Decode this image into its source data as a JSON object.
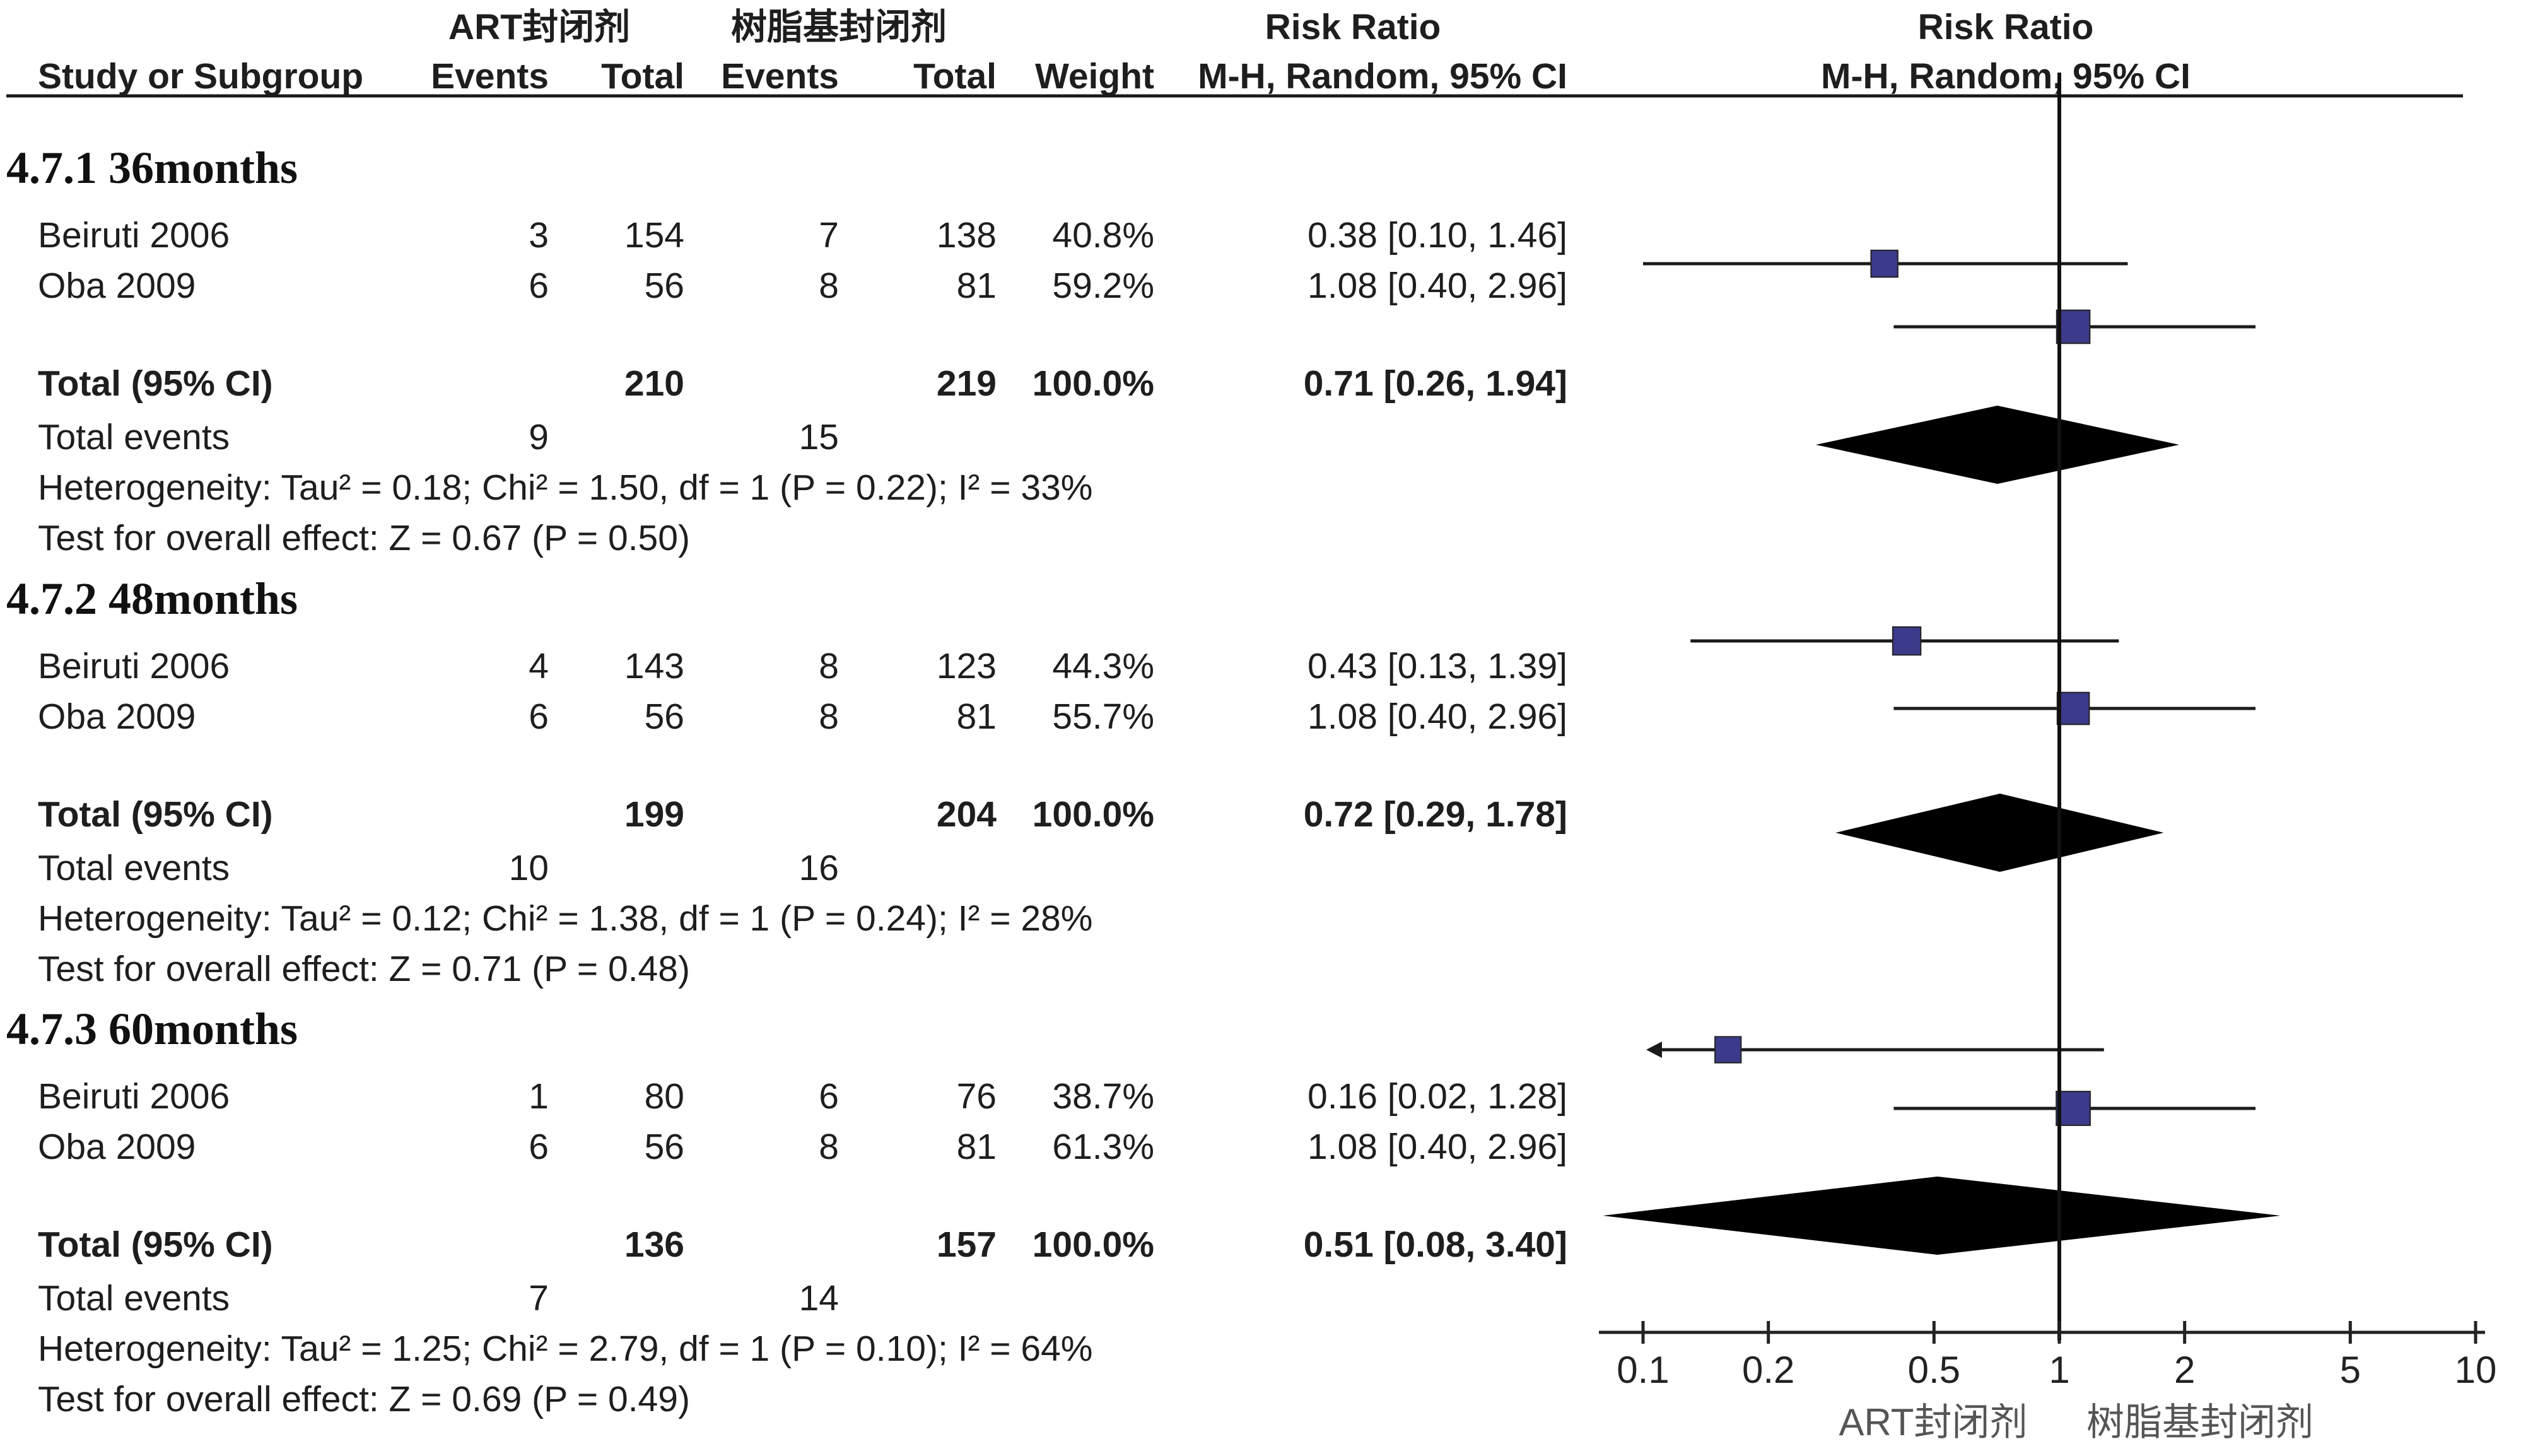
{
  "columns": {
    "study": "Study or Subgroup",
    "exp_group": "ART封闭剂",
    "ctrl_group": "树脂基封闭剂",
    "events": "Events",
    "total": "Total",
    "weight": "Weight",
    "rr_title": "Risk Ratio",
    "rr_method": "M-H, Random, 95% CI",
    "plot_title": "Risk Ratio",
    "plot_method": "M-H, Random, 95% CI"
  },
  "subgroups": [
    {
      "title": "4.7.1 36months",
      "studies": [
        {
          "name": "Beiruti 2006",
          "exp_events": "3",
          "exp_total": "154",
          "ctrl_events": "7",
          "ctrl_total": "138",
          "weight": "40.8%",
          "ci_text": "0.38 [0.10, 1.46]",
          "rr": 0.38,
          "lo": 0.1,
          "hi": 1.46,
          "w": 40.8
        },
        {
          "name": "Oba 2009",
          "exp_events": "6",
          "exp_total": "56",
          "ctrl_events": "8",
          "ctrl_total": "81",
          "weight": "59.2%",
          "ci_text": "1.08 [0.40, 2.96]",
          "rr": 1.08,
          "lo": 0.4,
          "hi": 2.96,
          "w": 59.2
        }
      ],
      "total": {
        "label": "Total (95% CI)",
        "exp_total": "210",
        "ctrl_total": "219",
        "weight": "100.0%",
        "ci_text": "0.71 [0.26, 1.94]",
        "rr": 0.71,
        "lo": 0.26,
        "hi": 1.94
      },
      "events": {
        "label": "Total events",
        "exp": "9",
        "ctrl": "15"
      },
      "heterogeneity": "Heterogeneity: Tau² = 0.18; Chi² = 1.50, df = 1 (P = 0.22); I² = 33%",
      "overall": "Test for overall effect: Z = 0.67 (P = 0.50)"
    },
    {
      "title": "4.7.2 48months",
      "studies": [
        {
          "name": "Beiruti 2006",
          "exp_events": "4",
          "exp_total": "143",
          "ctrl_events": "8",
          "ctrl_total": "123",
          "weight": "44.3%",
          "ci_text": "0.43 [0.13, 1.39]",
          "rr": 0.43,
          "lo": 0.13,
          "hi": 1.39,
          "w": 44.3
        },
        {
          "name": "Oba 2009",
          "exp_events": "6",
          "exp_total": "56",
          "ctrl_events": "8",
          "ctrl_total": "81",
          "weight": "55.7%",
          "ci_text": "1.08 [0.40, 2.96]",
          "rr": 1.08,
          "lo": 0.4,
          "hi": 2.96,
          "w": 55.7
        }
      ],
      "total": {
        "label": "Total (95% CI)",
        "exp_total": "199",
        "ctrl_total": "204",
        "weight": "100.0%",
        "ci_text": "0.72 [0.29, 1.78]",
        "rr": 0.72,
        "lo": 0.29,
        "hi": 1.78
      },
      "events": {
        "label": "Total events",
        "exp": "10",
        "ctrl": "16"
      },
      "heterogeneity": "Heterogeneity: Tau² = 0.12; Chi² = 1.38, df = 1 (P = 0.24); I² = 28%",
      "overall": "Test for overall effect: Z = 0.71 (P = 0.48)"
    },
    {
      "title": "4.7.3 60months",
      "studies": [
        {
          "name": "Beiruti 2006",
          "exp_events": "1",
          "exp_total": "80",
          "ctrl_events": "6",
          "ctrl_total": "76",
          "weight": "38.7%",
          "ci_text": "0.16 [0.02, 1.28]",
          "rr": 0.16,
          "lo": 0.02,
          "hi": 1.28,
          "w": 38.7
        },
        {
          "name": "Oba 2009",
          "exp_events": "6",
          "exp_total": "56",
          "ctrl_events": "8",
          "ctrl_total": "81",
          "weight": "61.3%",
          "ci_text": "1.08 [0.40, 2.96]",
          "rr": 1.08,
          "lo": 0.4,
          "hi": 2.96,
          "w": 61.3
        }
      ],
      "total": {
        "label": "Total (95% CI)",
        "exp_total": "136",
        "ctrl_total": "157",
        "weight": "100.0%",
        "ci_text": "0.51 [0.08, 3.40]",
        "rr": 0.51,
        "lo": 0.08,
        "hi": 3.4
      },
      "events": {
        "label": "Total events",
        "exp": "7",
        "ctrl": "14"
      },
      "heterogeneity": "Heterogeneity: Tau² = 1.25; Chi² = 2.79, df = 1 (P = 0.10); I² = 64%",
      "overall": "Test for overall effect: Z = 0.69 (P = 0.49)"
    }
  ],
  "chart_data": {
    "type": "scatter",
    "subtype": "forest plot",
    "x_scale": "log",
    "xlim": [
      0.1,
      10
    ],
    "x_ticks": [
      0.1,
      0.2,
      0.5,
      1,
      2,
      5,
      10
    ],
    "x_tick_labels": [
      "0.1",
      "0.2",
      "0.5",
      "1",
      "2",
      "5",
      "10"
    ],
    "reference_line": 1,
    "favours_left": "ART封闭剂",
    "favours_right": "树脂基封闭剂",
    "series": [
      {
        "name": "4.7.1 36months",
        "points": [
          {
            "label": "Beiruti 2006",
            "rr": 0.38,
            "lo": 0.1,
            "hi": 1.46,
            "weight": 40.8
          },
          {
            "label": "Oba 2009",
            "rr": 1.08,
            "lo": 0.4,
            "hi": 2.96,
            "weight": 59.2
          },
          {
            "label": "Total (95% CI)",
            "rr": 0.71,
            "lo": 0.26,
            "hi": 1.94,
            "pooled": true
          }
        ]
      },
      {
        "name": "4.7.2 48months",
        "points": [
          {
            "label": "Beiruti 2006",
            "rr": 0.43,
            "lo": 0.13,
            "hi": 1.39,
            "weight": 44.3
          },
          {
            "label": "Oba 2009",
            "rr": 1.08,
            "lo": 0.4,
            "hi": 2.96,
            "weight": 55.7
          },
          {
            "label": "Total (95% CI)",
            "rr": 0.72,
            "lo": 0.29,
            "hi": 1.78,
            "pooled": true
          }
        ]
      },
      {
        "name": "4.7.3 60months",
        "points": [
          {
            "label": "Beiruti 2006",
            "rr": 0.16,
            "lo": 0.02,
            "hi": 1.28,
            "weight": 38.7
          },
          {
            "label": "Oba 2009",
            "rr": 1.08,
            "lo": 0.4,
            "hi": 2.96,
            "weight": 61.3
          },
          {
            "label": "Total (95% CI)",
            "rr": 0.51,
            "lo": 0.08,
            "hi": 3.4,
            "pooled": true
          }
        ]
      }
    ],
    "colors": {
      "marker": "#3c3a8a",
      "line": "#1a1a1a",
      "diamond": "#000000"
    }
  }
}
